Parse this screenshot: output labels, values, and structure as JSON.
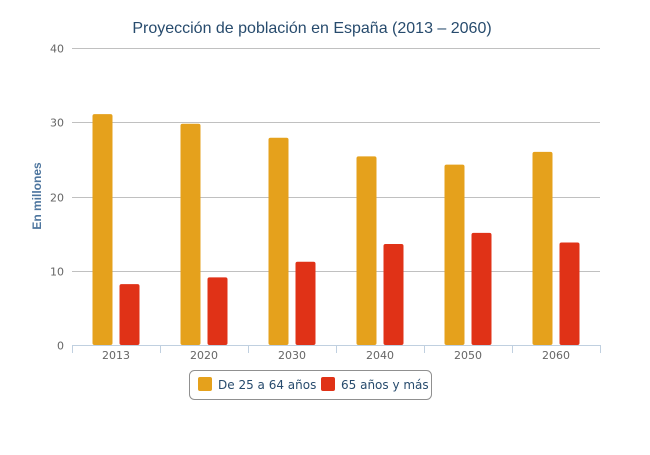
{
  "chart_data": {
    "type": "bar",
    "title": "Proyección de población en España (2013 – 2060)",
    "xlabel": "",
    "ylabel": "En millones",
    "categories": [
      "2013",
      "2020",
      "2030",
      "2040",
      "2050",
      "2060"
    ],
    "series": [
      {
        "name": "De 25 a 64 años",
        "color": "#e5a11c",
        "values": [
          31.1,
          29.8,
          27.9,
          25.4,
          24.3,
          26.0
        ]
      },
      {
        "name": "65 años y más",
        "color": "#e03217",
        "values": [
          8.2,
          9.1,
          11.2,
          13.6,
          15.1,
          13.8
        ]
      }
    ],
    "ylim": [
      0,
      40
    ],
    "yticks": [
      "0",
      "10",
      "20",
      "30",
      "40"
    ],
    "grid": true,
    "legend_position": "bottom"
  }
}
